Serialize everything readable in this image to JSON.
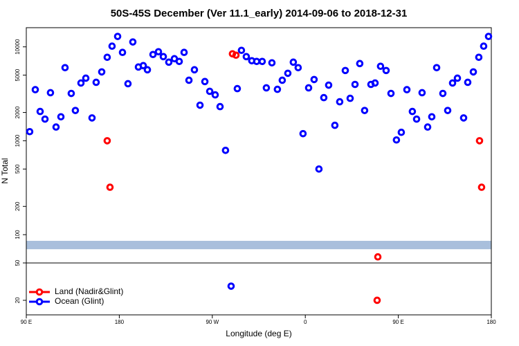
{
  "chart_data": {
    "type": "scatter",
    "title": "50S-45S December (Ver 11.1_early)   2014-09-06 to 2018-12-31",
    "xlabel": "Longitude (deg E)",
    "ylabel": "N Total",
    "xlim": [
      90,
      540
    ],
    "ylim": [
      14,
      16000
    ],
    "log_y": true,
    "xticks": [
      {
        "value": 90,
        "label": "90 E"
      },
      {
        "value": 180,
        "label": "180"
      },
      {
        "value": 270,
        "label": "90 W"
      },
      {
        "value": 360,
        "label": "0"
      },
      {
        "value": 450,
        "label": "90 E"
      },
      {
        "value": 540,
        "label": "180"
      }
    ],
    "yticks": [
      20,
      50,
      100,
      200,
      500,
      1000,
      2000,
      5000,
      10000
    ],
    "hline": 50,
    "band": {
      "range": [
        70,
        86
      ],
      "color": "#a9bfdc"
    },
    "legend": "lower left",
    "series": [
      {
        "name": "Land (Nadir&Glint)",
        "color": "#ff0000",
        "x": [
          168.3,
          171,
          289.5,
          292.9,
          430.2,
          429.5,
          528.6,
          530.6
        ],
        "values": [
          1000,
          320,
          8430,
          8150,
          58,
          20,
          1000,
          320
        ]
      },
      {
        "name": "Ocean (Glint)",
        "color": "#0000ff",
        "x": [
          93.3,
          98.7,
          103.4,
          108.1,
          113.4,
          118.8,
          123.5,
          127.5,
          133.5,
          137.5,
          142.9,
          147.6,
          153.6,
          157.6,
          163,
          168.3,
          173,
          178.4,
          183.1,
          188.4,
          193.1,
          198.5,
          203.2,
          207.2,
          212.6,
          217.9,
          222.6,
          227.9,
          233.3,
          238,
          242.7,
          247.4,
          252.7,
          258.1,
          262.8,
          267.5,
          272.8,
          277.5,
          282.8,
          288.2,
          294.2,
          298.2,
          302.9,
          308.2,
          312.9,
          318.3,
          322.3,
          327.7,
          333,
          337.7,
          343.1,
          348.4,
          353.1,
          357.8,
          363.2,
          368.5,
          373.2,
          377.9,
          382.6,
          388.6,
          393.3,
          398.7,
          403.4,
          408.1,
          412.7,
          417.4,
          423.5,
          427.5,
          432.8,
          438.2,
          442.9,
          448.2,
          452.9,
          458.3,
          463.6,
          467.7,
          473,
          478.4,
          482.4,
          487.1,
          493.1,
          497.8,
          502.5,
          507.2,
          513.2,
          517.2,
          522.6,
          527.9,
          532.6,
          537.3
        ],
        "values": [
          1250,
          3500,
          2050,
          1700,
          3250,
          1400,
          1800,
          6000,
          3190,
          2100,
          4120,
          4640,
          1750,
          4190,
          5410,
          7740,
          10170,
          12910,
          8730,
          4050,
          11270,
          6100,
          6310,
          5700,
          8290,
          8870,
          7870,
          6870,
          7480,
          6990,
          8730,
          4410,
          5700,
          2390,
          4270,
          3360,
          3080,
          2310,
          790,
          28.3,
          3590,
          9180,
          7870,
          7110,
          6990,
          6990,
          3660,
          6760,
          3530,
          4410,
          5230,
          6870,
          6000,
          1190,
          3660,
          4490,
          500,
          2880,
          3910,
          1460,
          2600,
          5600,
          2830,
          3980,
          6640,
          2100,
          3980,
          4120,
          6210,
          5600,
          3190,
          1020,
          1230,
          3500,
          2050,
          1700,
          3250,
          1400,
          1800,
          6000,
          3190,
          2100,
          4120,
          4640,
          1750,
          4190,
          5410,
          7740,
          10170,
          12910
        ]
      }
    ]
  }
}
